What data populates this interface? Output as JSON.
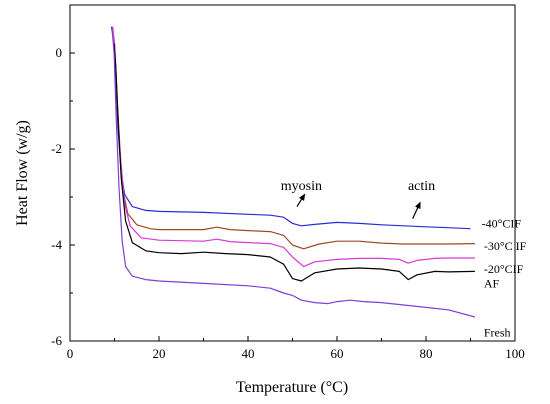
{
  "chart_data": {
    "type": "line",
    "title": "",
    "xlabel": "Temperature (°C)",
    "ylabel": "Heat Flow (w/g)",
    "xlim": [
      0,
      100
    ],
    "ylim": [
      -6,
      1
    ],
    "xticks": [
      0,
      20,
      40,
      60,
      80,
      100
    ],
    "yticks": [
      -6,
      -4,
      -2,
      0
    ],
    "xtick_labels": [
      "0",
      "20",
      "40",
      "60",
      "80",
      "100"
    ],
    "ytick_labels": [
      "-6",
      "-4",
      "-2",
      "0"
    ],
    "grid": false,
    "legend": "none (series labelled at right end of each curve)",
    "series": [
      {
        "name": "-40°CIF",
        "color": "#2b2bd6",
        "points": [
          [
            9.3,
            0.55
          ],
          [
            9.8,
            0.3
          ],
          [
            10.3,
            -0.6
          ],
          [
            10.8,
            -1.6
          ],
          [
            11.5,
            -2.5
          ],
          [
            12.3,
            -2.95
          ],
          [
            14,
            -3.2
          ],
          [
            17,
            -3.28
          ],
          [
            20,
            -3.3
          ],
          [
            30,
            -3.32
          ],
          [
            40,
            -3.36
          ],
          [
            45,
            -3.38
          ],
          [
            48,
            -3.42
          ],
          [
            50,
            -3.55
          ],
          [
            52,
            -3.6
          ],
          [
            55,
            -3.57
          ],
          [
            60,
            -3.53
          ],
          [
            65,
            -3.55
          ],
          [
            70,
            -3.58
          ],
          [
            75,
            -3.6
          ],
          [
            80,
            -3.62
          ],
          [
            85,
            -3.64
          ],
          [
            90,
            -3.66
          ]
        ],
        "label_pos": [
          92.5,
          -3.55
        ]
      },
      {
        "name": "-30°C IF",
        "color": "#9a4a28",
        "points": [
          [
            9.5,
            0.55
          ],
          [
            10,
            0.2
          ],
          [
            10.5,
            -0.9
          ],
          [
            11.2,
            -2.0
          ],
          [
            12,
            -2.9
          ],
          [
            13,
            -3.35
          ],
          [
            15,
            -3.58
          ],
          [
            18,
            -3.66
          ],
          [
            20,
            -3.68
          ],
          [
            30,
            -3.68
          ],
          [
            33,
            -3.63
          ],
          [
            36,
            -3.68
          ],
          [
            40,
            -3.7
          ],
          [
            45,
            -3.72
          ],
          [
            48,
            -3.8
          ],
          [
            50,
            -4.0
          ],
          [
            52.5,
            -4.08
          ],
          [
            56,
            -3.98
          ],
          [
            60,
            -3.92
          ],
          [
            65,
            -3.92
          ],
          [
            70,
            -3.96
          ],
          [
            75,
            -3.98
          ],
          [
            80,
            -3.98
          ],
          [
            85,
            -3.98
          ],
          [
            91,
            -3.97
          ]
        ],
        "label_pos": [
          93,
          -4.02
        ]
      },
      {
        "name": "-20°CIF",
        "color": "#d63ad6",
        "points": [
          [
            9.6,
            0.55
          ],
          [
            10.1,
            0.1
          ],
          [
            10.7,
            -1.1
          ],
          [
            11.4,
            -2.25
          ],
          [
            12.3,
            -3.15
          ],
          [
            13.5,
            -3.6
          ],
          [
            16,
            -3.85
          ],
          [
            20,
            -3.9
          ],
          [
            30,
            -3.92
          ],
          [
            33,
            -3.88
          ],
          [
            36,
            -3.93
          ],
          [
            40,
            -3.95
          ],
          [
            45,
            -3.97
          ],
          [
            48,
            -4.05
          ],
          [
            50,
            -4.25
          ],
          [
            52.5,
            -4.45
          ],
          [
            55,
            -4.35
          ],
          [
            60,
            -4.3
          ],
          [
            65,
            -4.28
          ],
          [
            70,
            -4.28
          ],
          [
            74,
            -4.3
          ],
          [
            76,
            -4.38
          ],
          [
            78,
            -4.32
          ],
          [
            82,
            -4.28
          ],
          [
            85,
            -4.27
          ],
          [
            91,
            -4.27
          ]
        ],
        "label_pos": [
          93,
          -4.5
        ]
      },
      {
        "name": "AF",
        "color": "#000000",
        "points": [
          [
            9.9,
            0.2
          ],
          [
            10.3,
            -0.3
          ],
          [
            10.8,
            -1.4
          ],
          [
            11.5,
            -2.6
          ],
          [
            12.5,
            -3.5
          ],
          [
            14,
            -3.95
          ],
          [
            17,
            -4.12
          ],
          [
            20,
            -4.16
          ],
          [
            25,
            -4.18
          ],
          [
            30,
            -4.15
          ],
          [
            35,
            -4.18
          ],
          [
            40,
            -4.2
          ],
          [
            45,
            -4.25
          ],
          [
            48,
            -4.4
          ],
          [
            50,
            -4.7
          ],
          [
            52,
            -4.75
          ],
          [
            55,
            -4.58
          ],
          [
            60,
            -4.5
          ],
          [
            65,
            -4.48
          ],
          [
            70,
            -4.5
          ],
          [
            74,
            -4.55
          ],
          [
            76,
            -4.72
          ],
          [
            78,
            -4.62
          ],
          [
            82,
            -4.55
          ],
          [
            85,
            -4.56
          ],
          [
            91,
            -4.55
          ]
        ],
        "label_pos": [
          93,
          -4.8
        ]
      },
      {
        "name": "Fresh",
        "color": "#7b3fd2",
        "points": [
          [
            9.5,
            0.45
          ],
          [
            9.9,
            0.0
          ],
          [
            10.4,
            -1.4
          ],
          [
            11,
            -2.8
          ],
          [
            11.7,
            -3.9
          ],
          [
            12.5,
            -4.45
          ],
          [
            14,
            -4.65
          ],
          [
            17,
            -4.72
          ],
          [
            20,
            -4.75
          ],
          [
            30,
            -4.8
          ],
          [
            40,
            -4.85
          ],
          [
            45,
            -4.9
          ],
          [
            48,
            -5.0
          ],
          [
            50,
            -5.05
          ],
          [
            52,
            -5.15
          ],
          [
            55,
            -5.2
          ],
          [
            58,
            -5.22
          ],
          [
            60,
            -5.18
          ],
          [
            63,
            -5.15
          ],
          [
            66,
            -5.18
          ],
          [
            70,
            -5.2
          ],
          [
            75,
            -5.25
          ],
          [
            80,
            -5.3
          ],
          [
            85,
            -5.35
          ],
          [
            91,
            -5.5
          ]
        ],
        "label_pos": [
          93,
          -5.82
        ]
      }
    ],
    "annotations": [
      {
        "text": "myosin",
        "label_at": [
          52,
          -2.85
        ],
        "arrow_from": [
          51,
          -3.2
        ],
        "arrow_to": [
          52.5,
          -2.98
        ]
      },
      {
        "text": "actin",
        "label_at": [
          79,
          -2.85
        ],
        "arrow_from": [
          77,
          -3.45
        ],
        "arrow_to": [
          78.5,
          -3.15
        ]
      }
    ]
  }
}
